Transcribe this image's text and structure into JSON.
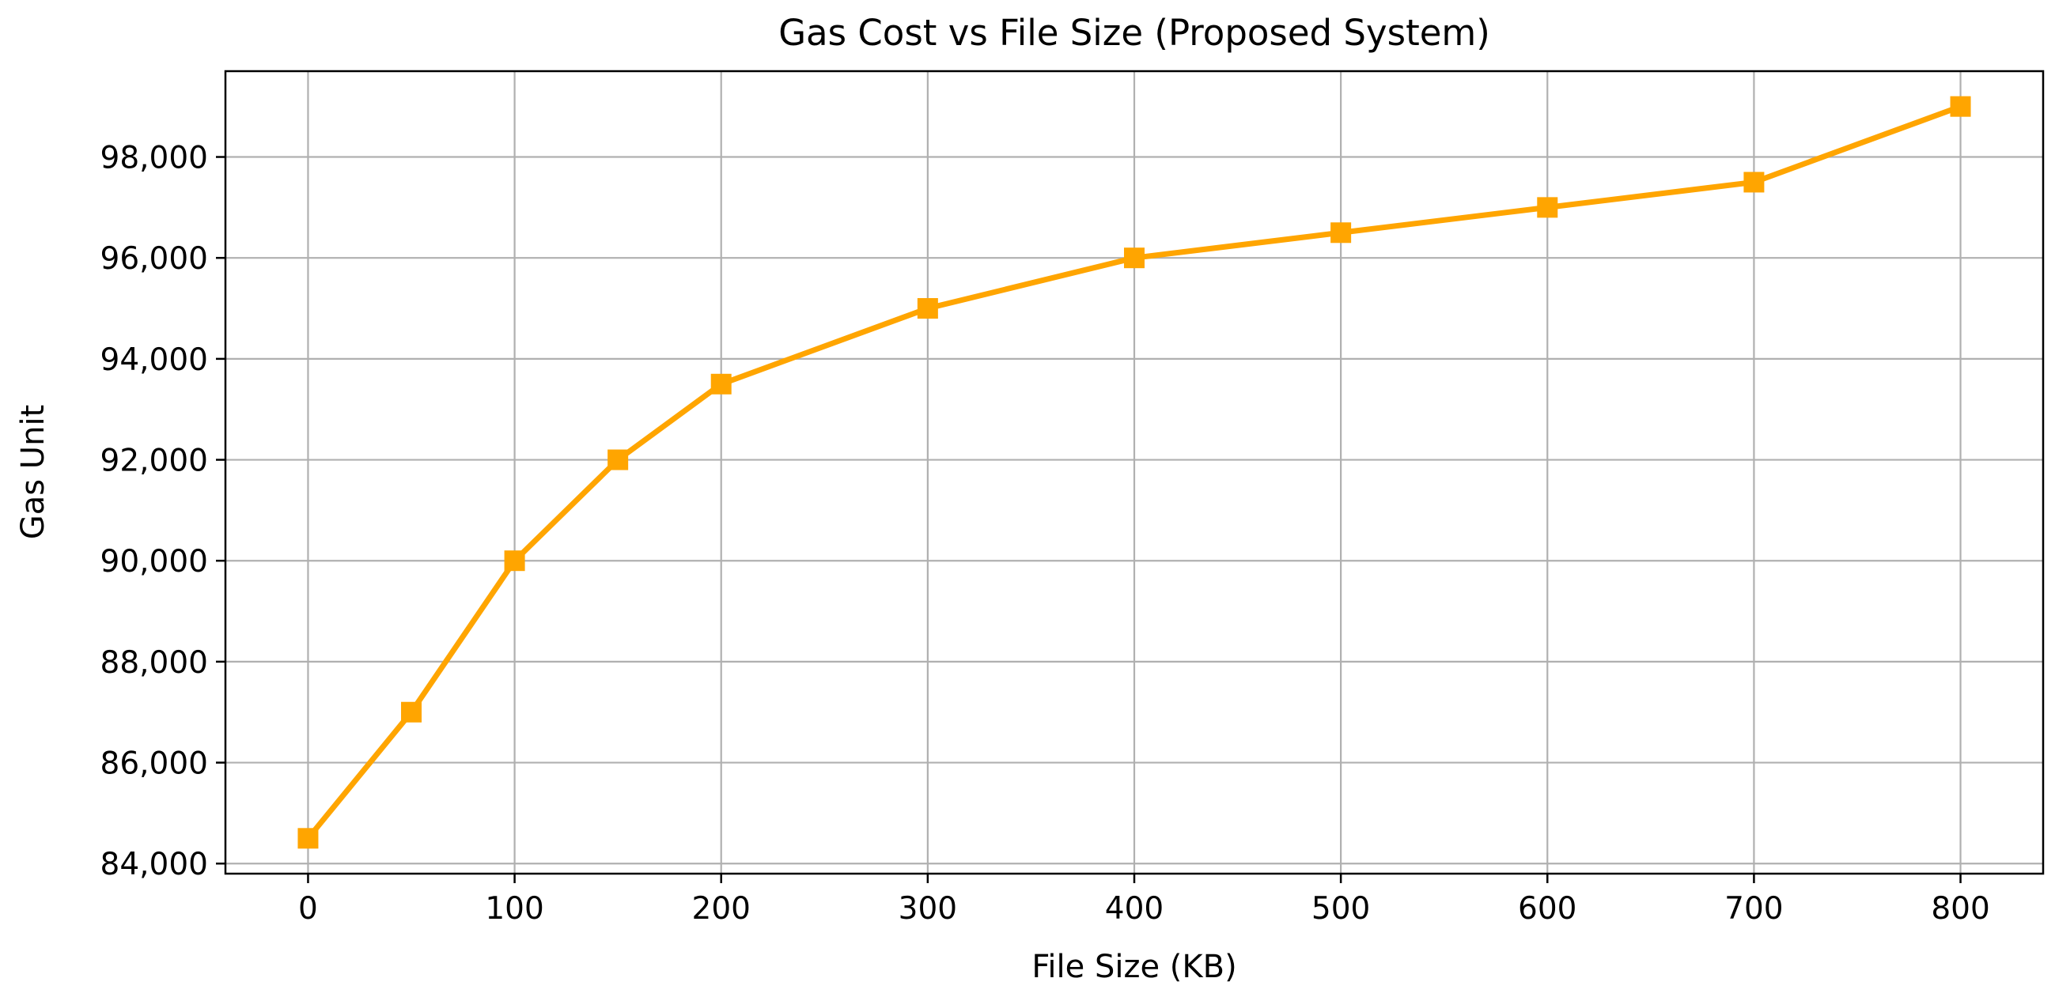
{
  "chart_data": {
    "type": "line",
    "title": "Gas Cost vs File Size (Proposed System)",
    "xlabel": "File Size (KB)",
    "ylabel": "Gas Unit",
    "x": [
      0,
      50,
      100,
      150,
      200,
      300,
      400,
      500,
      600,
      700,
      800
    ],
    "series": [
      {
        "values": [
          84500,
          87000,
          90000,
          92000,
          93500,
          95000,
          96000,
          96500,
          97000,
          97500,
          99000
        ],
        "color": "#FFA500",
        "marker": "square"
      }
    ],
    "xlim": [
      -40,
      840
    ],
    "ylim": [
      83800,
      99700
    ],
    "xticks": [
      0,
      100,
      200,
      300,
      400,
      500,
      600,
      700,
      800
    ],
    "xtick_labels": [
      "0",
      "100",
      "200",
      "300",
      "400",
      "500",
      "600",
      "700",
      "800"
    ],
    "yticks": [
      84000,
      86000,
      88000,
      90000,
      92000,
      94000,
      96000,
      98000
    ],
    "ytick_labels": [
      "84,000",
      "86,000",
      "88,000",
      "90,000",
      "92,000",
      "94,000",
      "96,000",
      "98,000"
    ],
    "grid": true,
    "grid_color": "#B0B0B0",
    "axis_color": "#000000"
  }
}
